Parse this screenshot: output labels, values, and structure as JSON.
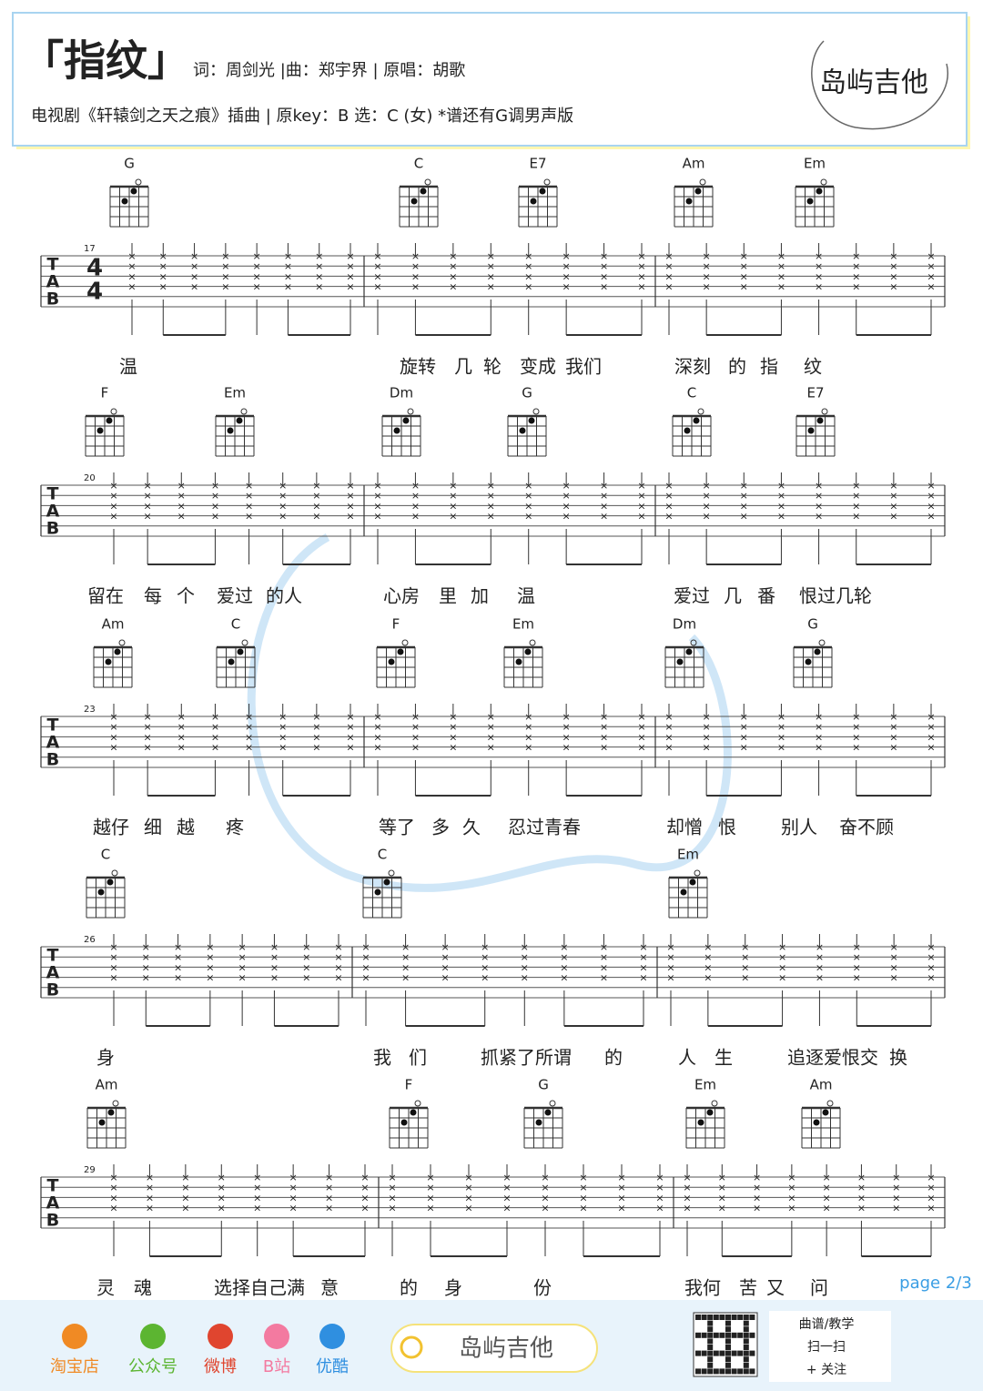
{
  "header": {
    "title": "「指纹」",
    "credits": "词：周剑光 |曲：郑宇界 | 原唱：胡歌",
    "subtitle": "电视剧《轩辕剑之天之痕》插曲 | 原key：B 选：C (女) *谱还有G调男声版",
    "logo": "岛屿吉他"
  },
  "staff_label": [
    "T",
    "A",
    "B"
  ],
  "time_signature": [
    "4",
    "4"
  ],
  "systems": [
    {
      "bar": 17,
      "chords": [
        "G",
        "C",
        "E7",
        "Am",
        "Em"
      ],
      "lyrics": [
        "温",
        "旋转",
        "几",
        "轮",
        "变成",
        "我们",
        "深刻",
        "的",
        "指",
        "纹"
      ]
    },
    {
      "bar": 20,
      "chords": [
        "F",
        "Em",
        "Dm",
        "G",
        "C",
        "E7"
      ],
      "lyrics": [
        "留在",
        "每",
        "个",
        "爱过",
        "的人",
        "心房",
        "里",
        "加",
        "温",
        "爱过",
        "几",
        "番",
        "恨过几轮"
      ]
    },
    {
      "bar": 23,
      "chords": [
        "Am",
        "C",
        "F",
        "Em",
        "Dm",
        "G"
      ],
      "lyrics": [
        "越仔",
        "细",
        "越",
        "疼",
        "等了",
        "多",
        "久",
        "忍过青春",
        "却憎",
        "恨",
        "别人",
        "奋不顾"
      ]
    },
    {
      "bar": 26,
      "chords": [
        "C",
        "C",
        "Em"
      ],
      "lyrics": [
        "身",
        "我",
        "们",
        "抓紧了所谓",
        "的",
        "人",
        "生",
        "追逐爱恨交",
        "换"
      ]
    },
    {
      "bar": 29,
      "chords": [
        "Am",
        "F",
        "G",
        "Em",
        "Am"
      ],
      "lyrics": [
        "灵",
        "魂",
        "选择自己满",
        "意",
        "的",
        "身",
        "份",
        "我何",
        "苦",
        "又",
        "问"
      ]
    }
  ],
  "page": "page 2/3",
  "footer": {
    "links": [
      "淘宝店",
      "公众号",
      "微博",
      "B站",
      "优酷"
    ],
    "search": "岛屿吉他",
    "qr_caption": [
      "曲谱/教学",
      "扫一扫",
      "+ 关注"
    ]
  }
}
